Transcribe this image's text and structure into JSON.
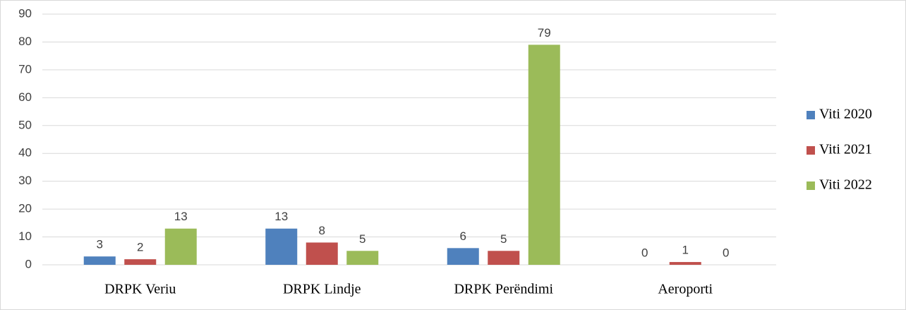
{
  "chart_data": {
    "type": "bar",
    "categories": [
      "DRPK Veriu",
      "DRPK Lindje",
      "DRPK Perëndimi",
      "Aeroporti"
    ],
    "series": [
      {
        "name": "Viti 2020",
        "color": "#4f81bd",
        "values": [
          3,
          13,
          6,
          0
        ]
      },
      {
        "name": "Viti 2021",
        "color": "#c0504d",
        "values": [
          2,
          8,
          5,
          1
        ]
      },
      {
        "name": "Viti 2022",
        "color": "#9bbb59",
        "values": [
          13,
          5,
          79,
          0
        ]
      }
    ],
    "ylim": [
      0,
      90
    ],
    "yticks": [
      0,
      10,
      20,
      30,
      40,
      50,
      60,
      70,
      80,
      90
    ],
    "grid": true,
    "legend": "right"
  }
}
